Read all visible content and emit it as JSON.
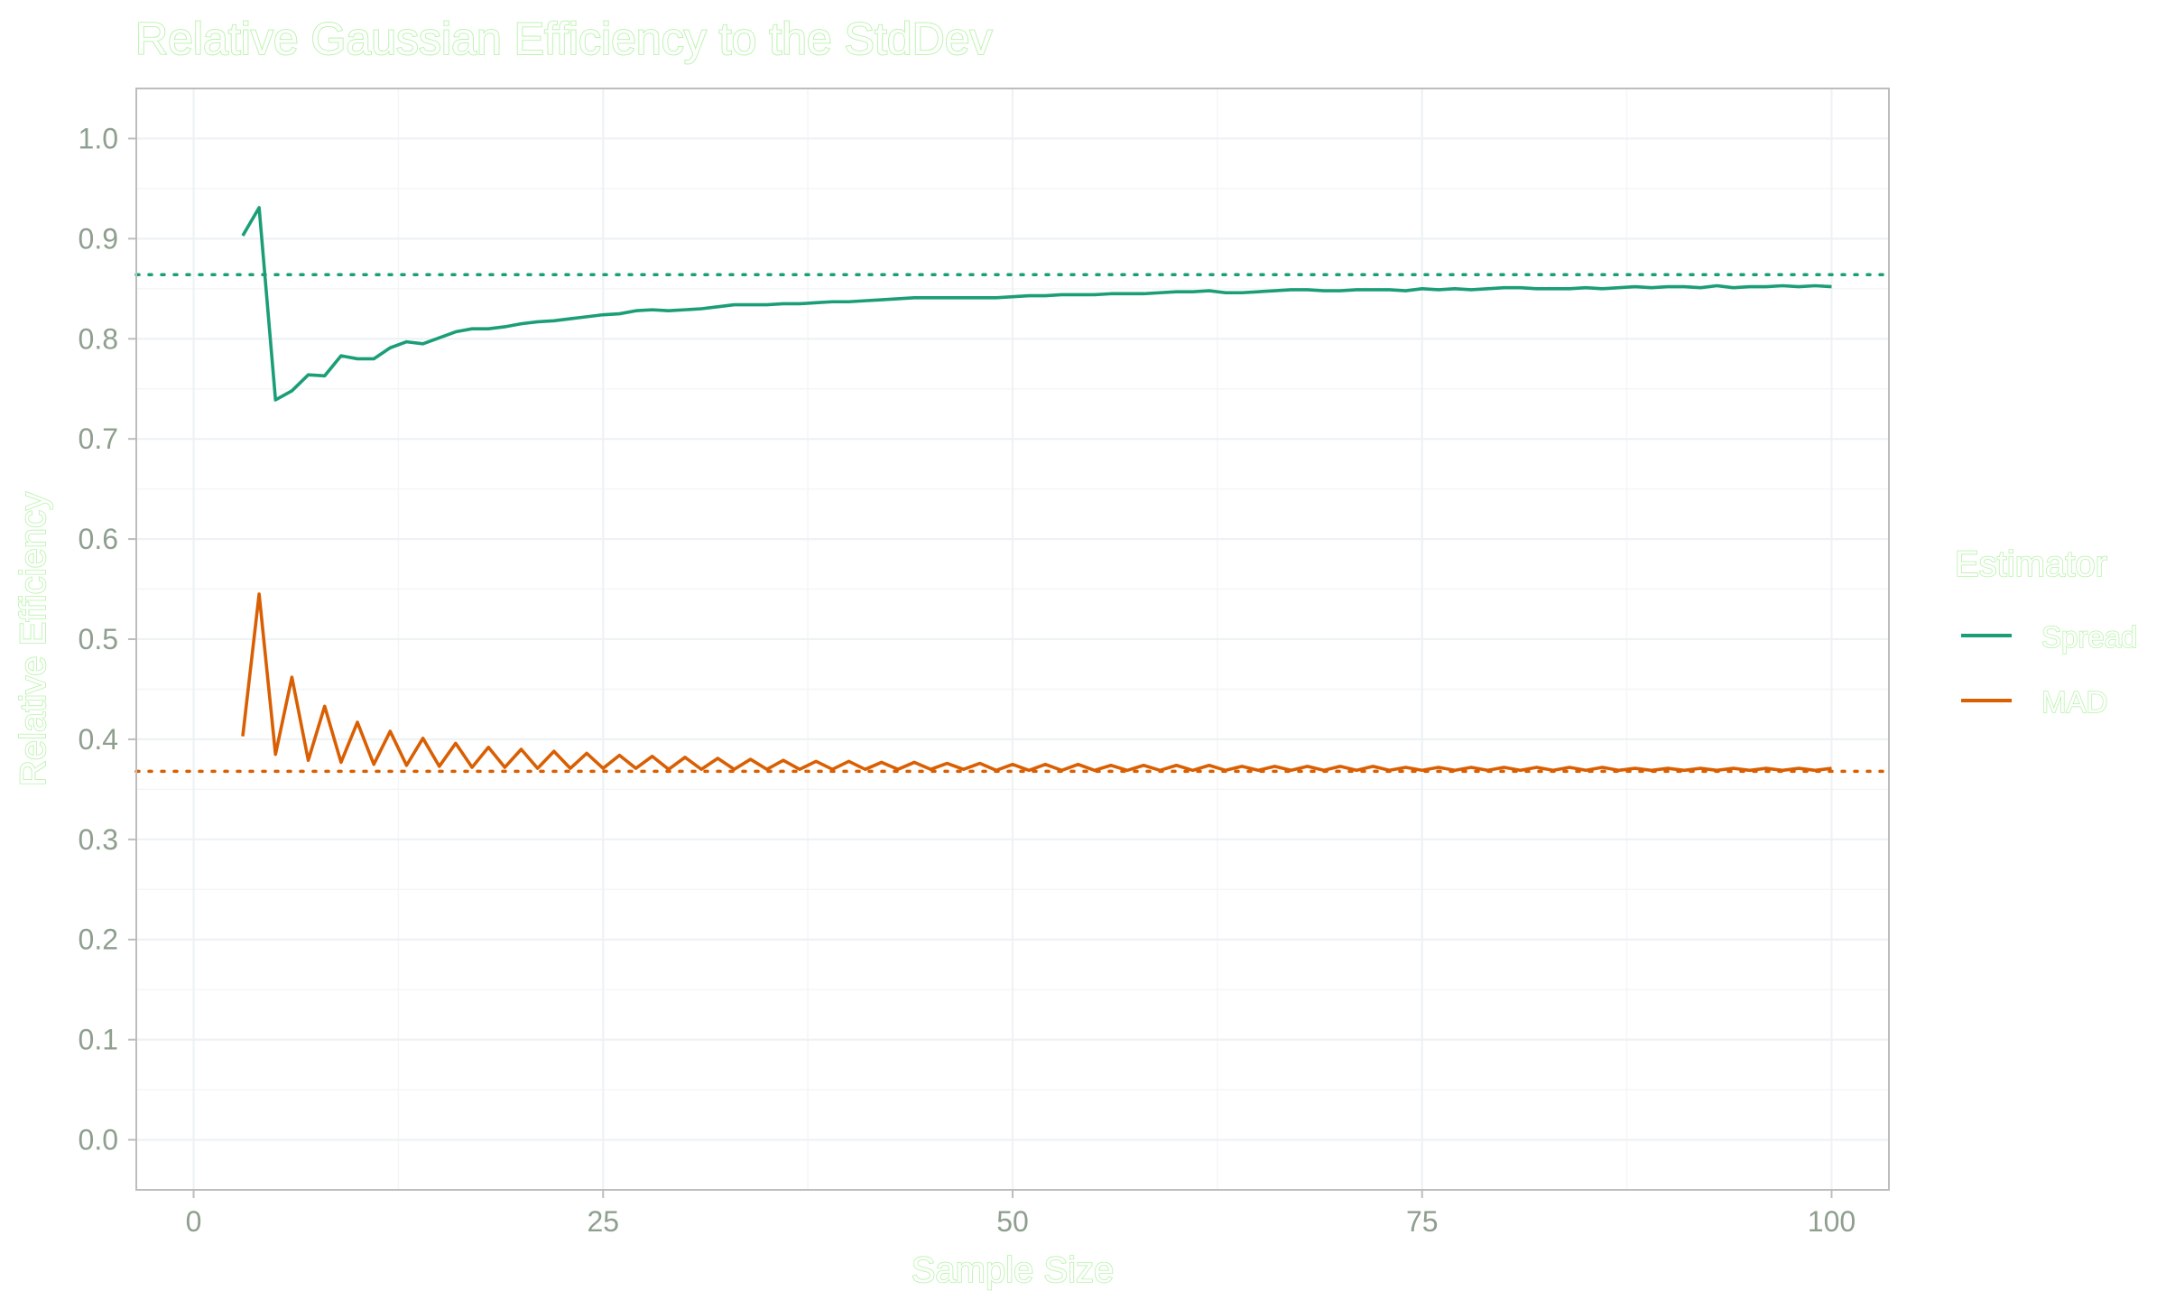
{
  "chart_data": {
    "type": "line",
    "title": "Relative Gaussian Efficiency to the StdDev",
    "xlabel": "Sample Size",
    "ylabel": "Relative Efficiency",
    "xlim": [
      -3.5,
      103.5
    ],
    "ylim": [
      -0.05,
      1.05
    ],
    "x_ticks": [
      0,
      25,
      50,
      75,
      100
    ],
    "x_tick_labels": [
      "0",
      "25",
      "50",
      "75",
      "100"
    ],
    "y_ticks": [
      0.0,
      0.1,
      0.2,
      0.3,
      0.4,
      0.5,
      0.6,
      0.7,
      0.8,
      0.9,
      1.0
    ],
    "y_tick_labels": [
      "0.0",
      "0.1",
      "0.2",
      "0.3",
      "0.4",
      "0.5",
      "0.6",
      "0.7",
      "0.8",
      "0.9",
      "1.0"
    ],
    "grid": true,
    "legend": {
      "title": "Estimator",
      "position": "right",
      "entries": [
        "Spread",
        "MAD"
      ]
    },
    "colors": {
      "Spread": "#1b9e77",
      "MAD": "#d95f02"
    },
    "series": [
      {
        "name": "Spread",
        "x": [
          3,
          4,
          5,
          6,
          7,
          8,
          9,
          10,
          11,
          12,
          13,
          14,
          15,
          16,
          17,
          18,
          19,
          20,
          21,
          22,
          23,
          24,
          25,
          26,
          27,
          28,
          29,
          30,
          31,
          32,
          33,
          34,
          35,
          36,
          37,
          38,
          39,
          40,
          41,
          42,
          43,
          44,
          45,
          46,
          47,
          48,
          49,
          50,
          51,
          52,
          53,
          54,
          55,
          56,
          57,
          58,
          59,
          60,
          61,
          62,
          63,
          64,
          65,
          66,
          67,
          68,
          69,
          70,
          71,
          72,
          73,
          74,
          75,
          76,
          77,
          78,
          79,
          80,
          81,
          82,
          83,
          84,
          85,
          86,
          87,
          88,
          89,
          90,
          91,
          92,
          93,
          94,
          95,
          96,
          97,
          98,
          99,
          100
        ],
        "y": [
          0.903,
          0.931,
          0.739,
          0.748,
          0.764,
          0.763,
          0.783,
          0.78,
          0.78,
          0.791,
          0.797,
          0.795,
          0.801,
          0.807,
          0.81,
          0.81,
          0.812,
          0.815,
          0.817,
          0.818,
          0.82,
          0.822,
          0.824,
          0.825,
          0.828,
          0.829,
          0.828,
          0.829,
          0.83,
          0.832,
          0.834,
          0.834,
          0.834,
          0.835,
          0.835,
          0.836,
          0.837,
          0.837,
          0.838,
          0.839,
          0.84,
          0.841,
          0.841,
          0.841,
          0.841,
          0.841,
          0.841,
          0.842,
          0.843,
          0.843,
          0.844,
          0.844,
          0.844,
          0.845,
          0.845,
          0.845,
          0.846,
          0.847,
          0.847,
          0.848,
          0.846,
          0.846,
          0.847,
          0.848,
          0.849,
          0.849,
          0.848,
          0.848,
          0.849,
          0.849,
          0.849,
          0.848,
          0.85,
          0.849,
          0.85,
          0.849,
          0.85,
          0.851,
          0.851,
          0.85,
          0.85,
          0.85,
          0.851,
          0.85,
          0.851,
          0.852,
          0.851,
          0.852,
          0.852,
          0.851,
          0.853,
          0.851,
          0.852,
          0.852,
          0.853,
          0.852,
          0.853,
          0.852
        ]
      },
      {
        "name": "MAD",
        "x": [
          3,
          4,
          5,
          6,
          7,
          8,
          9,
          10,
          11,
          12,
          13,
          14,
          15,
          16,
          17,
          18,
          19,
          20,
          21,
          22,
          23,
          24,
          25,
          26,
          27,
          28,
          29,
          30,
          31,
          32,
          33,
          34,
          35,
          36,
          37,
          38,
          39,
          40,
          41,
          42,
          43,
          44,
          45,
          46,
          47,
          48,
          49,
          50,
          51,
          52,
          53,
          54,
          55,
          56,
          57,
          58,
          59,
          60,
          61,
          62,
          63,
          64,
          65,
          66,
          67,
          68,
          69,
          70,
          71,
          72,
          73,
          74,
          75,
          76,
          77,
          78,
          79,
          80,
          81,
          82,
          83,
          84,
          85,
          86,
          87,
          88,
          89,
          90,
          91,
          92,
          93,
          94,
          95,
          96,
          97,
          98,
          99,
          100
        ],
        "y": [
          0.403,
          0.545,
          0.385,
          0.462,
          0.379,
          0.433,
          0.377,
          0.417,
          0.375,
          0.408,
          0.374,
          0.401,
          0.373,
          0.396,
          0.372,
          0.392,
          0.372,
          0.39,
          0.371,
          0.388,
          0.371,
          0.386,
          0.371,
          0.384,
          0.371,
          0.383,
          0.37,
          0.382,
          0.37,
          0.381,
          0.37,
          0.38,
          0.37,
          0.379,
          0.37,
          0.378,
          0.37,
          0.378,
          0.37,
          0.377,
          0.37,
          0.377,
          0.37,
          0.376,
          0.37,
          0.376,
          0.369,
          0.375,
          0.369,
          0.375,
          0.369,
          0.375,
          0.369,
          0.374,
          0.369,
          0.374,
          0.369,
          0.374,
          0.369,
          0.374,
          0.369,
          0.373,
          0.369,
          0.373,
          0.369,
          0.373,
          0.369,
          0.373,
          0.369,
          0.373,
          0.369,
          0.372,
          0.369,
          0.372,
          0.369,
          0.372,
          0.369,
          0.372,
          0.369,
          0.372,
          0.369,
          0.372,
          0.369,
          0.372,
          0.369,
          0.371,
          0.369,
          0.371,
          0.369,
          0.371,
          0.369,
          0.371,
          0.369,
          0.371,
          0.369,
          0.371,
          0.369,
          0.371
        ]
      }
    ],
    "reference_lines": [
      {
        "name": "Spread",
        "y": 0.864,
        "style": "dotted"
      },
      {
        "name": "MAD",
        "y": 0.368,
        "style": "dotted"
      }
    ]
  }
}
